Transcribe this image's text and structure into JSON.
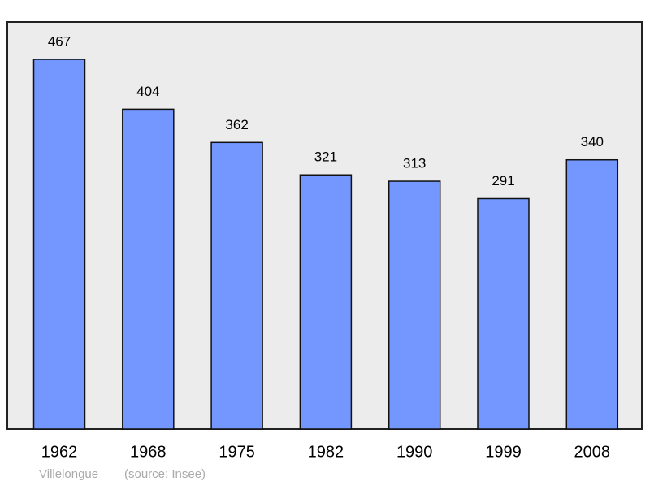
{
  "chart_data": {
    "type": "bar",
    "title": "Villelongue",
    "source": "(source: Insee)",
    "categories": [
      "1962",
      "1968",
      "1975",
      "1982",
      "1990",
      "1999",
      "2008"
    ],
    "values": [
      467,
      404,
      362,
      321,
      313,
      291,
      340
    ],
    "color": "#7396ff"
  }
}
